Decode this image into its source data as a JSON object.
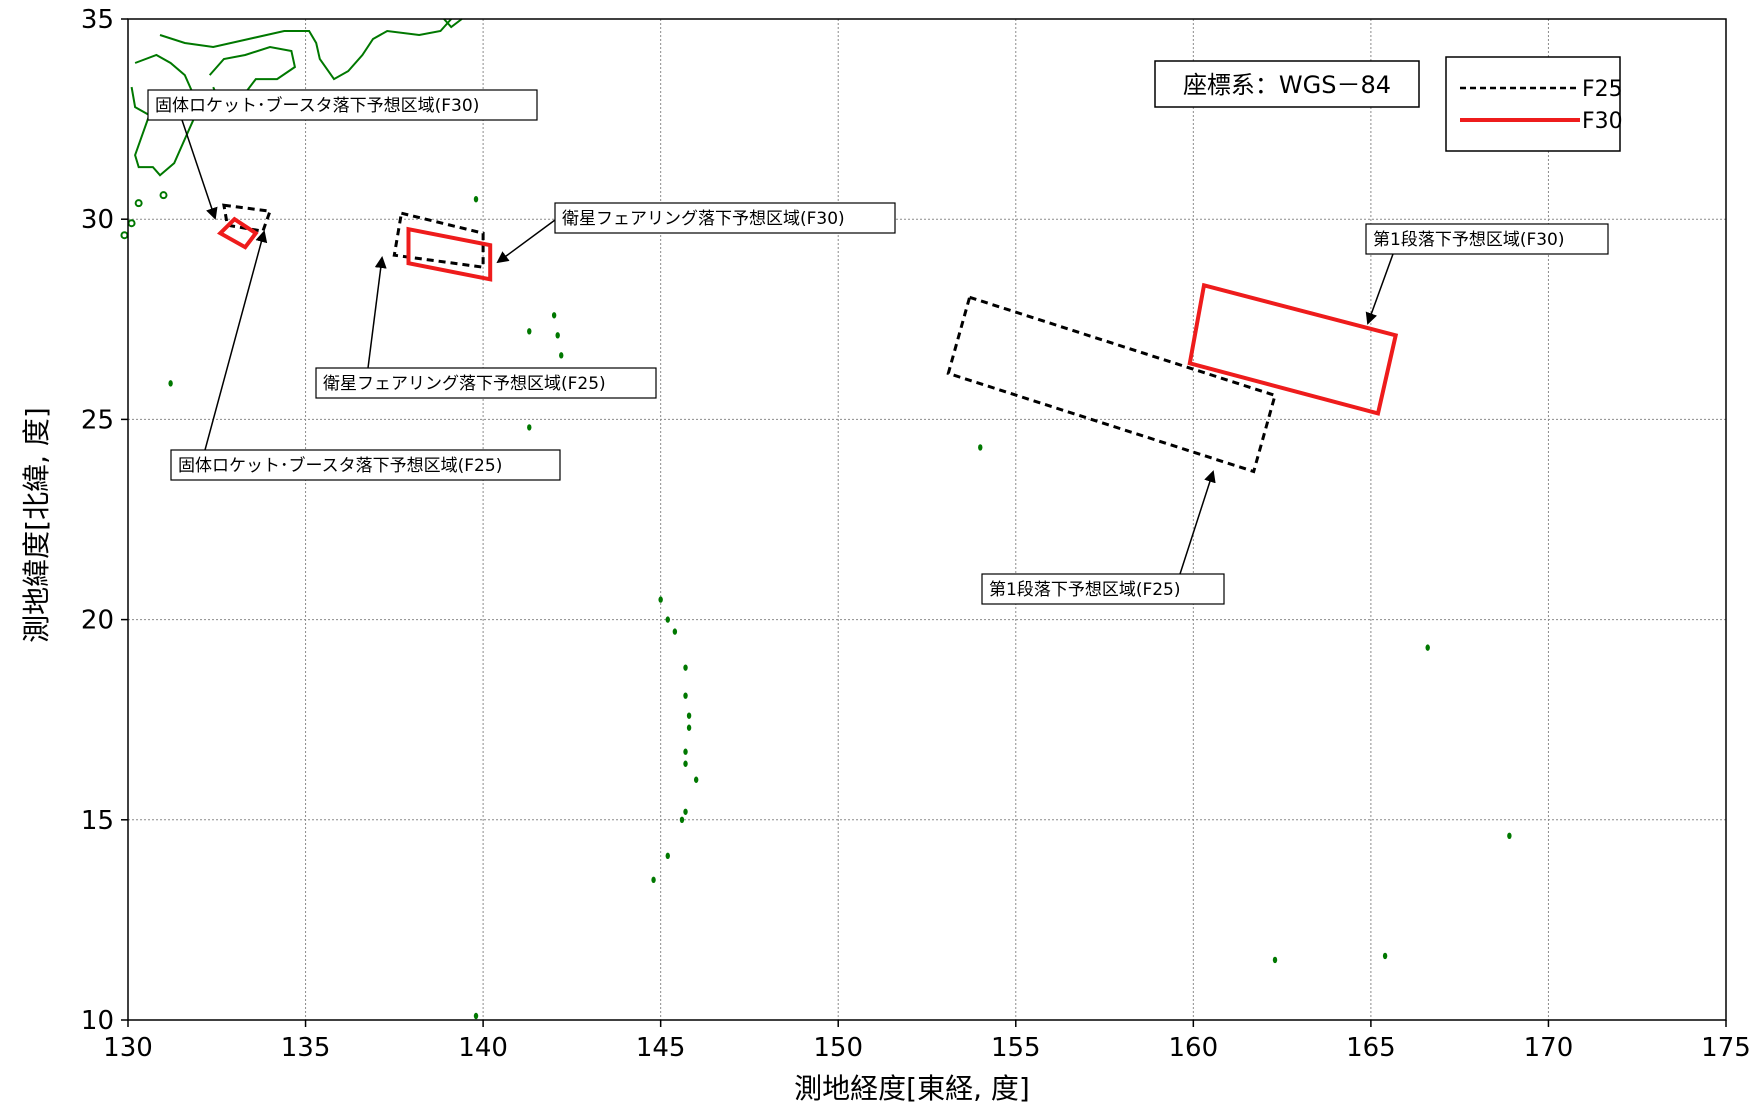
{
  "chart_data": {
    "type": "map",
    "xlim": [
      130,
      175
    ],
    "ylim": [
      10,
      35
    ],
    "x_ticks": [
      130,
      135,
      140,
      145,
      150,
      155,
      160,
      165,
      170,
      175
    ],
    "y_ticks": [
      10,
      15,
      20,
      25,
      30,
      35
    ],
    "xlabel": "測地経度[東経, 度]",
    "ylabel": "測地緯度[北緯, 度]",
    "grid": true,
    "coordinate_system": "座標系：WGS－84",
    "legend": {
      "placement": "top-right",
      "entries": [
        {
          "label": "F25",
          "style": "dashed",
          "color": "#000000"
        },
        {
          "label": "F30",
          "style": "solid",
          "color": "#ee1c1c"
        }
      ]
    },
    "zones": [
      {
        "id": "booster-f25",
        "series": "F25",
        "color": "#000000",
        "polygon": [
          [
            132.7,
            30.35
          ],
          [
            134.0,
            30.2
          ],
          [
            133.8,
            29.7
          ],
          [
            132.8,
            29.85
          ]
        ]
      },
      {
        "id": "booster-f30",
        "series": "F30",
        "color": "#ee1c1c",
        "polygon": [
          [
            132.6,
            29.65
          ],
          [
            133.0,
            30.0
          ],
          [
            133.6,
            29.65
          ],
          [
            133.3,
            29.3
          ]
        ]
      },
      {
        "id": "fairing-f25",
        "series": "F25",
        "color": "#000000",
        "polygon": [
          [
            137.7,
            30.15
          ],
          [
            140.0,
            29.65
          ],
          [
            140.0,
            28.8
          ],
          [
            137.5,
            29.1
          ]
        ]
      },
      {
        "id": "fairing-f30",
        "series": "F30",
        "color": "#ee1c1c",
        "polygon": [
          [
            137.9,
            29.75
          ],
          [
            140.2,
            29.35
          ],
          [
            140.2,
            28.5
          ],
          [
            137.9,
            28.9
          ]
        ]
      },
      {
        "id": "stage1-f25",
        "series": "F25",
        "color": "#000000",
        "polygon": [
          [
            153.7,
            28.05
          ],
          [
            162.3,
            25.6
          ],
          [
            161.7,
            23.7
          ],
          [
            153.1,
            26.15
          ]
        ]
      },
      {
        "id": "stage1-f30",
        "series": "F30",
        "color": "#ee1c1c",
        "polygon": [
          [
            160.3,
            28.35
          ],
          [
            165.7,
            27.1
          ],
          [
            165.2,
            25.15
          ],
          [
            159.9,
            26.4
          ]
        ]
      }
    ],
    "callouts": [
      {
        "id": "booster-f30",
        "text": "固体ロケット･ブースタ落下予想区域(F30)"
      },
      {
        "id": "fairing-f30",
        "text": "衛星フェアリング落下予想区域(F30)"
      },
      {
        "id": "stage1-f30",
        "text": "第1段落下予想区域(F30)"
      },
      {
        "id": "fairing-f25",
        "text": "衛星フェアリング落下予想区域(F25)"
      },
      {
        "id": "booster-f25",
        "text": "固体ロケット･ブースタ落下予想区域(F25)"
      },
      {
        "id": "stage1-f25",
        "text": "第1段落下予想区域(F25)"
      }
    ],
    "coastline_color": "#007800",
    "islands": [
      [
        131.2,
        25.9
      ],
      [
        139.8,
        30.5
      ],
      [
        141.3,
        27.2
      ],
      [
        142.0,
        27.6
      ],
      [
        142.1,
        27.1
      ],
      [
        142.2,
        26.6
      ],
      [
        141.3,
        24.8
      ],
      [
        154.0,
        24.3
      ],
      [
        145.0,
        20.5
      ],
      [
        145.2,
        20.0
      ],
      [
        145.4,
        19.7
      ],
      [
        145.7,
        18.8
      ],
      [
        145.7,
        18.1
      ],
      [
        145.8,
        17.6
      ],
      [
        145.8,
        17.3
      ],
      [
        145.7,
        16.7
      ],
      [
        145.7,
        16.4
      ],
      [
        146.0,
        16.0
      ],
      [
        145.7,
        15.2
      ],
      [
        145.6,
        15.0
      ],
      [
        145.2,
        14.1
      ],
      [
        144.8,
        13.5
      ],
      [
        166.6,
        19.3
      ],
      [
        168.9,
        14.6
      ],
      [
        162.3,
        11.5
      ],
      [
        165.4,
        11.6
      ],
      [
        139.8,
        10.1
      ]
    ]
  }
}
